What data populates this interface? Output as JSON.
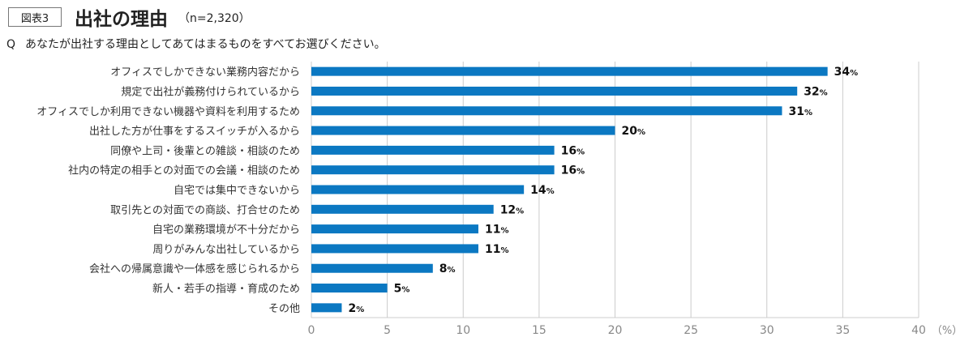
{
  "figure": {
    "badge": "図表3",
    "title": "出社の理由",
    "sample": "（n=2,320）",
    "question_mark": "Q",
    "question": "あなたが出社する理由としてあてはまるものをすべてお選びください。"
  },
  "chart_data": {
    "type": "bar",
    "orientation": "horizontal",
    "categories": [
      "オフィスでしかできない業務内容だから",
      "規定で出社が義務付けられているから",
      "オフィスでしか利用できない機器や資料を利用するため",
      "出社した方が仕事をするスイッチが入るから",
      "同僚や上司・後輩との雑談・相談のため",
      "社内の特定の相手との対面での会議・相談のため",
      "自宅では集中できないから",
      "取引先との対面での商談、打合せのため",
      "自宅の業務環境が不十分だから",
      "周りがみんな出社しているから",
      "会社への帰属意識や一体感を感じられるから",
      "新人・若手の指導・育成のため",
      "その他"
    ],
    "values": [
      34,
      32,
      31,
      20,
      16,
      16,
      14,
      12,
      11,
      11,
      8,
      5,
      2
    ],
    "value_suffix": "%",
    "xlim": [
      0,
      40
    ],
    "xticks": [
      0,
      5,
      10,
      15,
      20,
      25,
      30,
      35,
      40
    ],
    "x_unit": "（%）",
    "grid": true,
    "bar_color": "#0b78c2",
    "grid_color": "#cccccc"
  }
}
